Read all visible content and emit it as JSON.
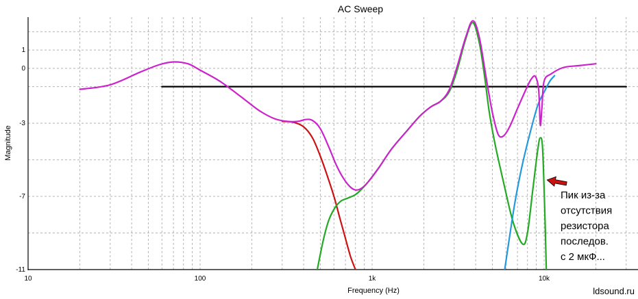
{
  "chart_data": {
    "type": "line",
    "title": "AC Sweep",
    "xlabel": "Frequency (Hz)",
    "ylabel": "Magnitude",
    "x_scale": "log",
    "xlim": [
      10,
      30000
    ],
    "ylim": [
      -11,
      2.8
    ],
    "x_ticks": [
      {
        "value": 10,
        "label": "10"
      },
      {
        "value": 100,
        "label": "100"
      },
      {
        "value": 1000,
        "label": "1k"
      },
      {
        "value": 10000,
        "label": "10k"
      }
    ],
    "y_ticks": [
      {
        "value": 1,
        "label": "1"
      },
      {
        "value": 0,
        "label": "0"
      },
      {
        "value": -3,
        "label": "-3"
      },
      {
        "value": -7,
        "label": "-7"
      },
      {
        "value": -11,
        "label": "-11"
      }
    ],
    "y_gridlines": [
      2,
      1,
      0,
      -1,
      -3,
      -5,
      -7,
      -9,
      -11
    ],
    "grid": true,
    "series": [
      {
        "color": "#000000",
        "points": [
          [
            60,
            -1
          ],
          [
            30000,
            -1
          ]
        ]
      },
      {
        "color": "#cc1111",
        "points": [
          [
            300,
            -2.9
          ],
          [
            350,
            -2.95
          ],
          [
            400,
            -3.2
          ],
          [
            450,
            -3.8
          ],
          [
            500,
            -4.8
          ],
          [
            550,
            -5.9
          ],
          [
            600,
            -7.0
          ],
          [
            650,
            -8.2
          ],
          [
            700,
            -9.3
          ],
          [
            750,
            -10.3
          ],
          [
            800,
            -11.0
          ]
        ]
      },
      {
        "color": "#22aa22",
        "points": [
          [
            480,
            -11.0
          ],
          [
            520,
            -9.4
          ],
          [
            560,
            -8.3
          ],
          [
            610,
            -7.6
          ],
          [
            660,
            -7.25
          ],
          [
            720,
            -7.1
          ],
          [
            800,
            -6.9
          ],
          [
            870,
            -6.6
          ],
          [
            950,
            -6.2
          ],
          [
            1100,
            -5.4
          ],
          [
            1300,
            -4.4
          ],
          [
            1600,
            -3.4
          ],
          [
            1900,
            -2.6
          ],
          [
            2200,
            -2.1
          ],
          [
            2500,
            -1.8
          ],
          [
            2800,
            -1.3
          ],
          [
            3100,
            -0.2
          ],
          [
            3500,
            1.6
          ],
          [
            3850,
            2.5
          ],
          [
            4200,
            1.4
          ],
          [
            4500,
            -0.4
          ],
          [
            4800,
            -2.4
          ],
          [
            5200,
            -4.2
          ],
          [
            5800,
            -6.2
          ],
          [
            6600,
            -8.4
          ],
          [
            7500,
            -9.6
          ],
          [
            8000,
            -9.0
          ],
          [
            8600,
            -6.6
          ],
          [
            9200,
            -4.4
          ],
          [
            9500,
            -3.8
          ],
          [
            9800,
            -4.4
          ],
          [
            10100,
            -8.0
          ],
          [
            10300,
            -11.0
          ]
        ]
      },
      {
        "color": "#2299dd",
        "points": [
          [
            5900,
            -11.0
          ],
          [
            6300,
            -9.2
          ],
          [
            6800,
            -7.2
          ],
          [
            7500,
            -5.2
          ],
          [
            8300,
            -3.5
          ],
          [
            9200,
            -2.0
          ],
          [
            10000,
            -1.3
          ],
          [
            10800,
            -0.7
          ],
          [
            11500,
            -0.4
          ]
        ]
      },
      {
        "color": "#cc22cc",
        "points": [
          [
            20,
            -1.15
          ],
          [
            30,
            -0.9
          ],
          [
            45,
            -0.2
          ],
          [
            58,
            0.2
          ],
          [
            70,
            0.35
          ],
          [
            85,
            0.25
          ],
          [
            100,
            -0.1
          ],
          [
            130,
            -0.7
          ],
          [
            170,
            -1.5
          ],
          [
            220,
            -2.3
          ],
          [
            270,
            -2.75
          ],
          [
            320,
            -2.9
          ],
          [
            370,
            -2.9
          ],
          [
            410,
            -2.8
          ],
          [
            450,
            -2.85
          ],
          [
            500,
            -3.3
          ],
          [
            560,
            -4.3
          ],
          [
            620,
            -5.3
          ],
          [
            680,
            -6.0
          ],
          [
            740,
            -6.45
          ],
          [
            800,
            -6.65
          ],
          [
            870,
            -6.55
          ],
          [
            950,
            -6.2
          ],
          [
            1100,
            -5.4
          ],
          [
            1300,
            -4.4
          ],
          [
            1600,
            -3.4
          ],
          [
            1900,
            -2.6
          ],
          [
            2200,
            -2.1
          ],
          [
            2500,
            -1.8
          ],
          [
            2800,
            -1.2
          ],
          [
            3100,
            0.0
          ],
          [
            3500,
            1.7
          ],
          [
            3850,
            2.6
          ],
          [
            4200,
            1.7
          ],
          [
            4600,
            -0.5
          ],
          [
            5000,
            -2.4
          ],
          [
            5400,
            -3.6
          ],
          [
            5800,
            -3.7
          ],
          [
            6300,
            -3.2
          ],
          [
            7000,
            -2.2
          ],
          [
            7800,
            -1.2
          ],
          [
            8400,
            -0.6
          ],
          [
            8900,
            -0.45
          ],
          [
            9300,
            -1.2
          ],
          [
            9500,
            -3.1
          ],
          [
            9700,
            -2.2
          ],
          [
            10000,
            -0.7
          ],
          [
            11000,
            -0.3
          ],
          [
            13000,
            0.05
          ],
          [
            16000,
            0.15
          ],
          [
            20000,
            0.25
          ]
        ]
      }
    ],
    "annotation": {
      "lines": [
        "Пик из-за",
        "отсутствия",
        "резистора",
        "последов.",
        "с 2 мкФ..."
      ],
      "arrow_from": [
        13500,
        -6.3
      ],
      "arrow_to": [
        10400,
        -6.1
      ],
      "arrow_color": "#cc1111"
    },
    "watermark": "ldsound.ru"
  }
}
